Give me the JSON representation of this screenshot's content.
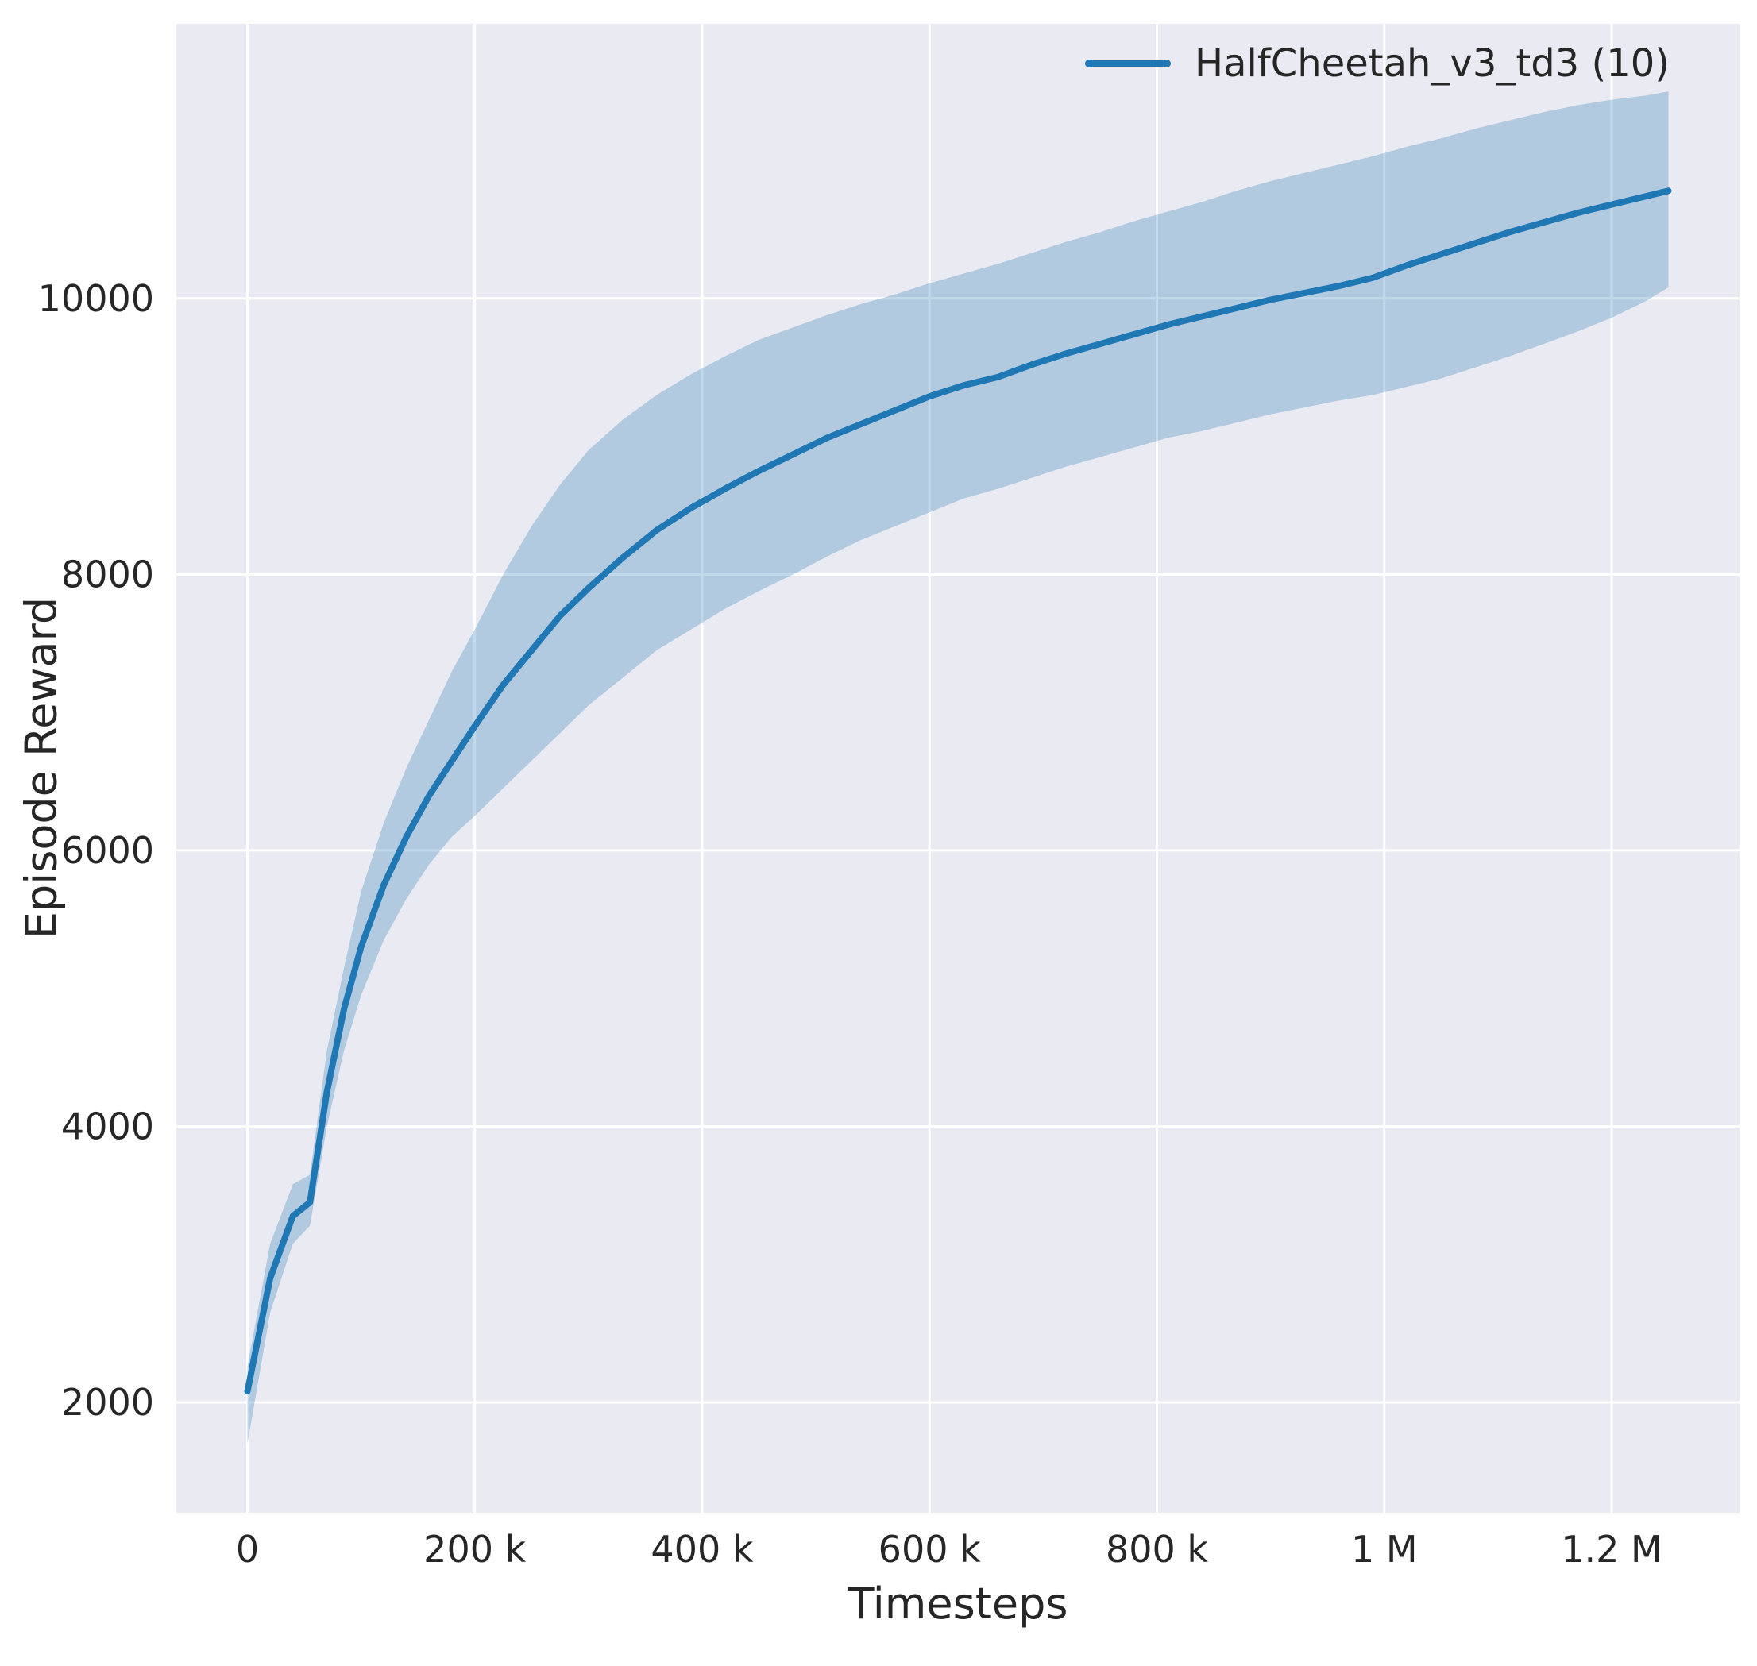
{
  "figure": {
    "background": "#ffffff",
    "axes_background": "#eaeaf2",
    "grid_color": "#ffffff",
    "text_color": "#262626"
  },
  "chart_data": {
    "type": "line",
    "title": "",
    "xlabel": "Timesteps",
    "ylabel": "Episode Reward",
    "grid": true,
    "legend_position": "upper right",
    "xlim": [
      -62500,
      1312500
    ],
    "ylim": [
      1200,
      11990
    ],
    "xticks": {
      "values": [
        0,
        200000,
        400000,
        600000,
        800000,
        1000000,
        1200000
      ],
      "labels": [
        "0",
        "200 k",
        "400 k",
        "600 k",
        "800 k",
        "1 M",
        "1.2 M"
      ]
    },
    "yticks": {
      "values": [
        2000,
        4000,
        6000,
        8000,
        10000
      ],
      "labels": [
        "2000",
        "4000",
        "6000",
        "8000",
        "10000"
      ]
    },
    "series": [
      {
        "name": "HalfCheetah_v3_td3 (10)",
        "color": "#1f77b4",
        "band_alpha": 0.28,
        "x": [
          0,
          20000,
          40000,
          55000,
          70000,
          85000,
          100000,
          120000,
          140000,
          160000,
          180000,
          200000,
          225000,
          250000,
          275000,
          300000,
          330000,
          360000,
          390000,
          420000,
          450000,
          480000,
          510000,
          540000,
          570000,
          600000,
          630000,
          660000,
          690000,
          720000,
          750000,
          780000,
          810000,
          840000,
          870000,
          900000,
          930000,
          960000,
          990000,
          1020000,
          1050000,
          1080000,
          1110000,
          1140000,
          1170000,
          1200000,
          1230000,
          1250000
        ],
        "mean": [
          2080,
          2900,
          3350,
          3450,
          4250,
          4850,
          5300,
          5750,
          6100,
          6400,
          6650,
          6900,
          7200,
          7450,
          7700,
          7900,
          8120,
          8320,
          8480,
          8620,
          8750,
          8870,
          8990,
          9090,
          9190,
          9290,
          9370,
          9430,
          9520,
          9600,
          9670,
          9740,
          9810,
          9870,
          9930,
          9990,
          10040,
          10090,
          10150,
          10240,
          10320,
          10400,
          10480,
          10550,
          10620,
          10680,
          10740,
          10780
        ],
        "lower": [
          1700,
          2650,
          3150,
          3280,
          4000,
          4550,
          4950,
          5350,
          5650,
          5900,
          6100,
          6250,
          6450,
          6650,
          6850,
          7050,
          7250,
          7450,
          7600,
          7750,
          7880,
          8000,
          8130,
          8250,
          8350,
          8450,
          8550,
          8620,
          8700,
          8780,
          8850,
          8920,
          8990,
          9040,
          9100,
          9160,
          9210,
          9260,
          9300,
          9360,
          9420,
          9500,
          9580,
          9670,
          9760,
          9860,
          9980,
          10080
        ],
        "upper": [
          2260,
          3150,
          3580,
          3650,
          4550,
          5150,
          5700,
          6200,
          6600,
          6950,
          7300,
          7600,
          8000,
          8350,
          8650,
          8900,
          9120,
          9300,
          9450,
          9580,
          9700,
          9790,
          9880,
          9960,
          10030,
          10110,
          10180,
          10250,
          10330,
          10410,
          10480,
          10560,
          10630,
          10700,
          10780,
          10850,
          10910,
          10970,
          11030,
          11100,
          11160,
          11230,
          11290,
          11350,
          11400,
          11440,
          11470,
          11500
        ]
      }
    ]
  }
}
